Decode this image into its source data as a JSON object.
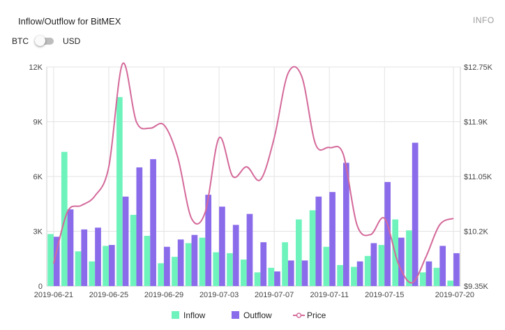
{
  "header": {
    "title": "Inflow/Outflow for BitMEX",
    "info_label": "INFO"
  },
  "toggle": {
    "left_label": "BTC",
    "right_label": "USD",
    "selected": "BTC"
  },
  "chart_data": {
    "type": "bar",
    "categories": [
      "2019-06-21",
      "2019-06-22",
      "2019-06-23",
      "2019-06-24",
      "2019-06-25",
      "2019-06-26",
      "2019-06-27",
      "2019-06-28",
      "2019-06-29",
      "2019-06-30",
      "2019-07-01",
      "2019-07-02",
      "2019-07-03",
      "2019-07-04",
      "2019-07-05",
      "2019-07-06",
      "2019-07-07",
      "2019-07-08",
      "2019-07-09",
      "2019-07-10",
      "2019-07-11",
      "2019-07-12",
      "2019-07-13",
      "2019-07-14",
      "2019-07-15",
      "2019-07-16",
      "2019-07-17",
      "2019-07-18",
      "2019-07-19",
      "2019-07-20"
    ],
    "x_tick_labels": [
      "2019-06-21",
      "2019-06-25",
      "2019-06-29",
      "2019-07-03",
      "2019-07-07",
      "2019-07-11",
      "2019-07-15",
      "2019-07-20"
    ],
    "series": [
      {
        "name": "Inflow",
        "type": "bar",
        "axis": "left",
        "color": "#6ff3bd",
        "values": [
          2850,
          7350,
          1900,
          1350,
          2200,
          10350,
          3900,
          2750,
          1250,
          1600,
          2350,
          2650,
          1850,
          1800,
          1450,
          750,
          1000,
          2400,
          3650,
          4150,
          2150,
          1150,
          1050,
          1650,
          2250,
          3650,
          3050,
          750,
          1000,
          300
        ]
      },
      {
        "name": "Outflow",
        "type": "bar",
        "axis": "left",
        "color": "#8a6bea",
        "values": [
          2700,
          4200,
          3100,
          3200,
          2250,
          4900,
          6500,
          6950,
          2150,
          2550,
          2800,
          5000,
          4350,
          3350,
          3950,
          2400,
          800,
          1400,
          1400,
          4900,
          5150,
          6750,
          1350,
          2350,
          5700,
          2650,
          7850,
          1350,
          2200,
          1800
        ]
      },
      {
        "name": "Price",
        "type": "line",
        "axis": "right",
        "color": "#d4699a",
        "values": [
          9700,
          10500,
          10600,
          10750,
          11200,
          12800,
          11900,
          11800,
          11850,
          11350,
          10400,
          10500,
          11650,
          11050,
          11200,
          11000,
          11650,
          12650,
          12600,
          11550,
          11500,
          11400,
          10300,
          10150,
          10400,
          9700,
          9400,
          9800,
          10300,
          10400
        ]
      }
    ],
    "ylim_left": [
      0,
      12000
    ],
    "yticks_left": [
      "0",
      "3K",
      "6K",
      "9K",
      "12K"
    ],
    "ylim_right": [
      9350,
      12750
    ],
    "yticks_right": [
      "$9.35K",
      "$10.2K",
      "$11.05K",
      "$11.9K",
      "$12.75K"
    ],
    "grid": true,
    "legend_position": "bottom"
  }
}
